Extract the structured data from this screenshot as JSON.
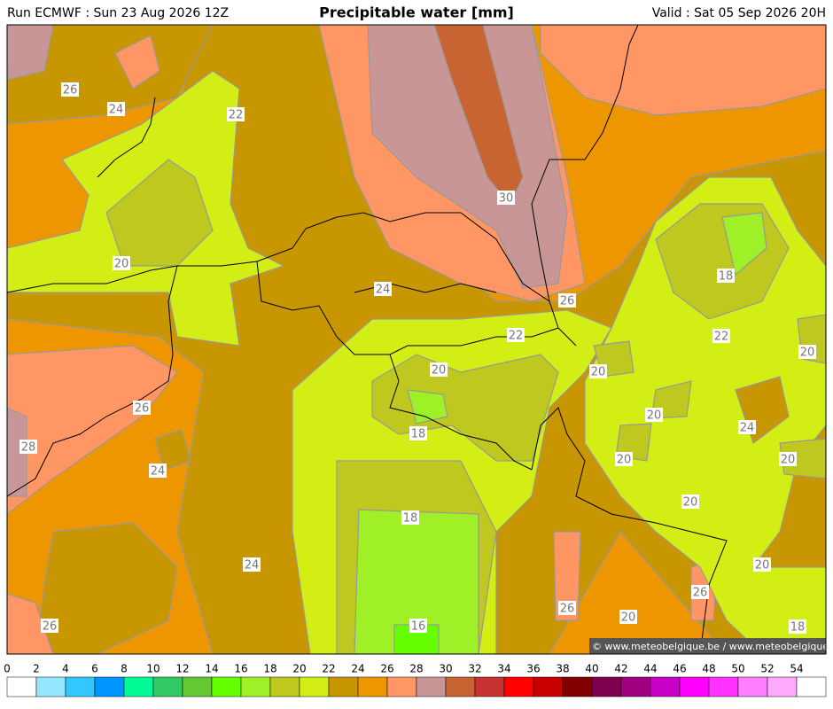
{
  "header": {
    "run": "Run ECMWF : Sun 23 Aug 2026 12Z",
    "title": "Precipitable water [mm]",
    "valid": "Valid : Sat 05 Sep 2026 20H"
  },
  "map": {
    "contour_labels": [
      26,
      24,
      22,
      20,
      24,
      30,
      26,
      22,
      18,
      22,
      20,
      20,
      20,
      20,
      18,
      24,
      26,
      28,
      24,
      20,
      20,
      20,
      18,
      24,
      20,
      26,
      26,
      20,
      26,
      16,
      18
    ],
    "credit": "© www.meteobelgique.be / www.meteobelgique.be"
  },
  "colorbar": {
    "ticks": [
      0,
      2,
      4,
      6,
      8,
      10,
      12,
      14,
      16,
      18,
      20,
      22,
      24,
      26,
      28,
      30,
      32,
      34,
      36,
      38,
      40,
      42,
      44,
      46,
      48,
      50,
      52,
      54
    ],
    "colors": [
      "#ffffff",
      "#96e6ff",
      "#32c8ff",
      "#0096ff",
      "#00fa96",
      "#32c864",
      "#64c832",
      "#64ff00",
      "#a0f028",
      "#bec81e",
      "#d2ee14",
      "#c89600",
      "#ee9600",
      "#ff9664",
      "#c89696",
      "#c86432",
      "#c83232",
      "#ff0000",
      "#c80000",
      "#800000",
      "#800050",
      "#a00080",
      "#c800c8",
      "#ff00ff",
      "#ff32ff",
      "#ff80ff",
      "#ffaaff",
      "#ffffff"
    ]
  }
}
